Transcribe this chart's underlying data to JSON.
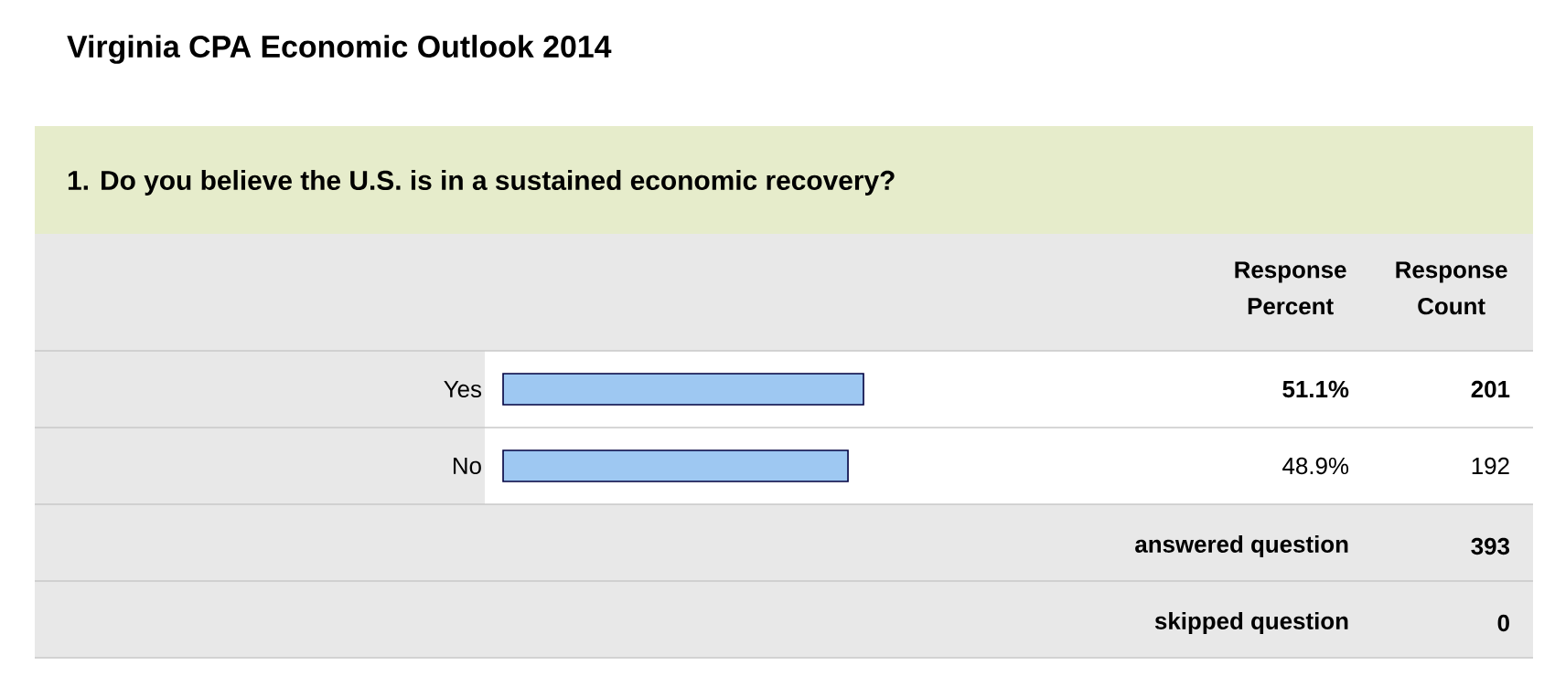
{
  "chart_data": {
    "type": "bar",
    "orientation": "horizontal",
    "title": "Virginia CPA Economic Outlook 2014",
    "subtitle": "1. Do you believe the U.S. is in a sustained economic recovery?",
    "categories": [
      "Yes",
      "No"
    ],
    "values": [
      51.1,
      48.9
    ],
    "value_labels": [
      "51.1%",
      "48.9%"
    ],
    "color": "#9ec8f2",
    "tick_labels": "y",
    "annotations": [
      "Response Percent",
      "Response Count",
      "201",
      "192",
      "answered question",
      "393",
      "skipped question",
      "0"
    ]
  }
}
